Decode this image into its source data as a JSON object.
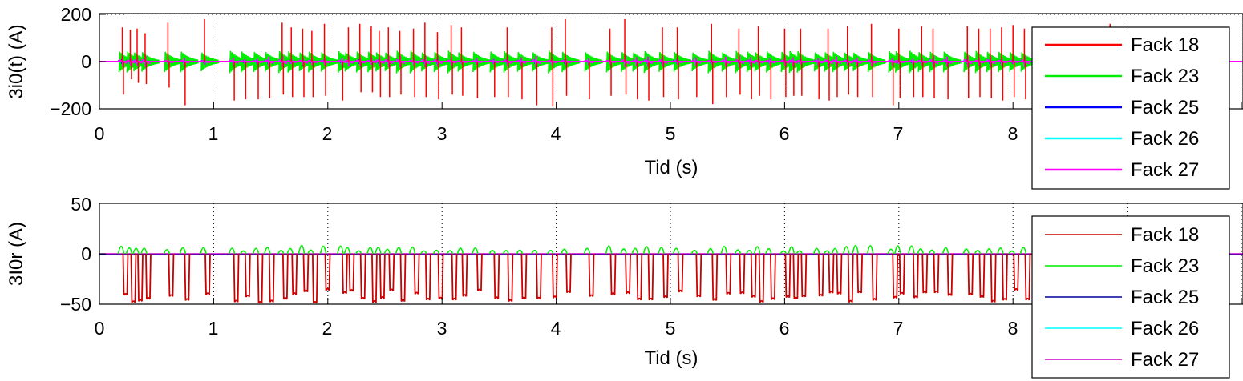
{
  "chart_data": [
    {
      "type": "line",
      "title": "",
      "xlabel": "Tid (s)",
      "ylabel": "3i0(t) (A)",
      "xlim": [
        0,
        10
      ],
      "ylim": [
        -200,
        200
      ],
      "x_ticks": [
        "0",
        "1",
        "2",
        "3",
        "4",
        "5",
        "6",
        "7",
        "8"
      ],
      "y_ticks": [
        "200",
        "0",
        "−200"
      ],
      "y_tick_values": [
        200,
        0,
        -200
      ],
      "grid": true,
      "legend_position": "right, overlapping plot",
      "legend": [
        "Fack 18",
        "Fack 23",
        "Fack 25",
        "Fack 26",
        "Fack 27"
      ],
      "series_colors": [
        "#ff0000",
        "#00ee00",
        "#0000ff",
        "#00ffff",
        "#ff00ff"
      ],
      "series": [
        {
          "name": "Fack 18",
          "color": "#ff0000",
          "events": [
            [
              0.2,
              145,
              -140
            ],
            [
              0.27,
              135,
              -75
            ],
            [
              0.33,
              140,
              -90
            ],
            [
              0.4,
              120,
              -95
            ],
            [
              0.6,
              165,
              -110
            ],
            [
              0.74,
              0,
              -185
            ],
            [
              0.92,
              180,
              0
            ],
            [
              1.17,
              0,
              -165
            ],
            [
              1.27,
              0,
              -160
            ],
            [
              1.38,
              0,
              -160
            ],
            [
              1.48,
              0,
              -155
            ],
            [
              1.6,
              165,
              -140
            ],
            [
              1.68,
              145,
              -150
            ],
            [
              1.78,
              140,
              -150
            ],
            [
              1.86,
              130,
              -150
            ],
            [
              1.97,
              160,
              -145
            ],
            [
              2.12,
              0,
              -165
            ],
            [
              2.18,
              145,
              0
            ],
            [
              2.28,
              160,
              -130
            ],
            [
              2.38,
              150,
              -130
            ],
            [
              2.45,
              130,
              -150
            ],
            [
              2.53,
              145,
              -150
            ],
            [
              2.63,
              130,
              -140
            ],
            [
              2.75,
              140,
              -150
            ],
            [
              2.85,
              165,
              -150
            ],
            [
              2.96,
              125,
              -160
            ],
            [
              3.08,
              155,
              -140
            ],
            [
              3.17,
              145,
              -145
            ],
            [
              3.3,
              0,
              -155
            ],
            [
              3.45,
              0,
              -150
            ],
            [
              3.57,
              145,
              -150
            ],
            [
              3.69,
              0,
              -160
            ],
            [
              3.82,
              0,
              -185
            ],
            [
              3.96,
              145,
              -190
            ],
            [
              4.08,
              180,
              -145
            ],
            [
              4.28,
              0,
              -160
            ],
            [
              4.47,
              140,
              -145
            ],
            [
              4.6,
              180,
              -140
            ],
            [
              4.7,
              0,
              -160
            ],
            [
              4.8,
              0,
              -165
            ],
            [
              4.93,
              145,
              -150
            ],
            [
              5.06,
              145,
              -160
            ],
            [
              5.22,
              0,
              -150
            ],
            [
              5.36,
              160,
              -180
            ],
            [
              5.48,
              0,
              -150
            ],
            [
              5.6,
              140,
              -140
            ],
            [
              5.7,
              0,
              -160
            ],
            [
              5.77,
              150,
              -145
            ],
            [
              5.87,
              0,
              -160
            ],
            [
              6.0,
              140,
              -150
            ],
            [
              6.07,
              0,
              -145
            ],
            [
              6.14,
              140,
              -145
            ],
            [
              6.29,
              0,
              -160
            ],
            [
              6.38,
              140,
              -165
            ],
            [
              6.45,
              0,
              -150
            ],
            [
              6.55,
              150,
              -140
            ],
            [
              6.63,
              0,
              -150
            ],
            [
              6.76,
              160,
              -150
            ],
            [
              6.94,
              0,
              -185
            ],
            [
              7.0,
              140,
              -155
            ],
            [
              7.12,
              0,
              -150
            ],
            [
              7.2,
              150,
              -150
            ],
            [
              7.3,
              140,
              -155
            ],
            [
              7.42,
              0,
              -160
            ],
            [
              7.6,
              150,
              -155
            ],
            [
              7.7,
              140,
              -150
            ],
            [
              7.8,
              140,
              -155
            ],
            [
              7.9,
              145,
              -165
            ],
            [
              8.0,
              155,
              -150
            ],
            [
              8.1,
              140,
              -160
            ],
            [
              8.2,
              145,
              -155
            ],
            [
              8.3,
              140,
              -170
            ],
            [
              8.4,
              135,
              -150
            ],
            [
              8.5,
              0,
              -165
            ],
            [
              8.6,
              140,
              -160
            ],
            [
              8.72,
              145,
              -150
            ],
            [
              8.85,
              160,
              -170
            ]
          ]
        },
        {
          "name": "Fack 23",
          "color": "#00ee00",
          "amplitude": [
            40,
            50
          ]
        },
        {
          "name": "Fack 25",
          "color": "#0000ff",
          "amplitude": [
            5,
            10
          ]
        },
        {
          "name": "Fack 26",
          "color": "#00ffff",
          "amplitude": [
            5,
            10
          ]
        },
        {
          "name": "Fack 27",
          "color": "#ff00ff",
          "amplitude": [
            10,
            25
          ]
        }
      ]
    },
    {
      "type": "line",
      "title": "",
      "xlabel": "Tid (s)",
      "ylabel": "3I0r (A)",
      "xlim": [
        0,
        10
      ],
      "ylim": [
        -50,
        50
      ],
      "x_ticks": [
        "0",
        "1",
        "2",
        "3",
        "4",
        "5",
        "6",
        "7",
        "8"
      ],
      "y_ticks": [
        "50",
        "0",
        "−50"
      ],
      "y_tick_values": [
        50,
        0,
        -50
      ],
      "grid": true,
      "legend_position": "right, overlapping plot",
      "legend": [
        "Fack 18",
        "Fack 23",
        "Fack 25",
        "Fack 26",
        "Fack 27"
      ],
      "series_colors": [
        "#cc0000",
        "#00ee00",
        "#000099",
        "#00ffff",
        "#cc00cc"
      ],
      "series": [
        {
          "name": "Fack 18",
          "color": "#cc0000",
          "dip_range": [
            -46,
            -33
          ]
        },
        {
          "name": "Fack 23",
          "color": "#00ee00",
          "peak_range": [
            4,
            12
          ]
        },
        {
          "name": "Fack 25",
          "color": "#000099",
          "value": 0
        },
        {
          "name": "Fack 26",
          "color": "#00ffff",
          "value": 0
        },
        {
          "name": "Fack 27",
          "color": "#cc00cc",
          "value": 0
        }
      ]
    }
  ]
}
